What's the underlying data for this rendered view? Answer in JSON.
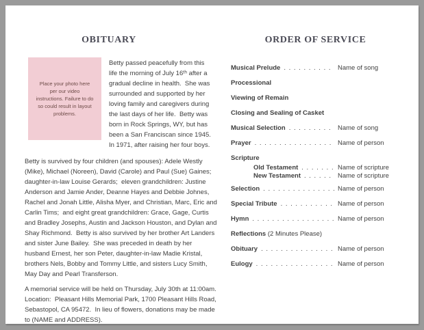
{
  "colors": {
    "frame": "#9a9a9a",
    "page": "#ffffff",
    "heading": "#4b4b56",
    "body_text": "#3e3e3e",
    "photo_box_bg": "#f2cdd4",
    "photo_box_text": "#6d4b47"
  },
  "obituary": {
    "title": "OBITUARY",
    "photo_placeholder": "Place your photo here per our video instructions. Failure to do so could result in layout problems.",
    "paragraphs": [
      "Betty passed peacefully from this life the morning of July 16ᵗʰ after a gradual decline in health.  She was surrounded and supported by her loving family and caregivers during the last days of her life.  Betty was born in Rock Springs, WY, but has been a San Franciscan since 1945.  In 1971, after raising her four boys.",
      "Betty is survived by four children (and spouses): Adele Westly (Mike), Michael (Noreen), David (Carole) and Paul (Sue) Gaines;  daughter-in-law Louise Gerards;  eleven grandchildren: Justine Anderson and Jamie Ander, Deanne Hayes and Debbie Johnes, Rachel and Jonah Little, Alisha Myer, and Christian, Marc, Eric and Carlin Tims;  and eight great grandchildren: Grace, Gage, Curtis and Bradley Josephs, Austin and Jackson Houston, and Dylan and Shay Richmond.  Betty is also survived by her brother Art Landers and sister June Bailey.  She was preceded in death by her husband Ernest, her son Peter, daughter-in-law Madie Kristal, brothers Nels, Bobby and Tommy Little, and sisters Lucy Smith, May Day and Pearl Transferson.",
      "A memorial service will be held on Thursday, July 30th at 11:00am.  Location:  Pleasant Hills Memorial Park, 1700 Pleasant Hills Road, Sebastopol, CA 95472.  In lieu of flowers, donations may be made to (NAME and ADDRESS)."
    ]
  },
  "order_of_service": {
    "title": "ORDER OF SERVICE",
    "leader": ". . . . . . . . . . . . . . . . . . . . . . . . . . . . . . . . . . . . . . . . . . . . . . . . . .",
    "items": [
      {
        "label": "Musical Prelude",
        "value": "Name of song"
      },
      {
        "label": "Processional"
      },
      {
        "label": "Viewing of Remain"
      },
      {
        "label": "Closing and Sealing of Casket"
      },
      {
        "label": "Musical Selection",
        "value": "Name of song"
      },
      {
        "label": "Prayer",
        "value": "Name of person"
      },
      {
        "label": "Scripture",
        "children": [
          {
            "label": "Old Testament",
            "value": "Name of scripture"
          },
          {
            "label": "New Testament",
            "value": "Name of scripture"
          }
        ]
      },
      {
        "label": "Selection",
        "value": "Name of person"
      },
      {
        "label": "Special Tribute",
        "value": "Name of person"
      },
      {
        "label": "Hymn",
        "value": "Name of person"
      },
      {
        "label": "Reflections",
        "suffix": "(2 Minutes Please)"
      },
      {
        "label": "Obituary",
        "value": "Name of person"
      },
      {
        "label": "Eulogy",
        "value": "Name of person"
      }
    ]
  }
}
